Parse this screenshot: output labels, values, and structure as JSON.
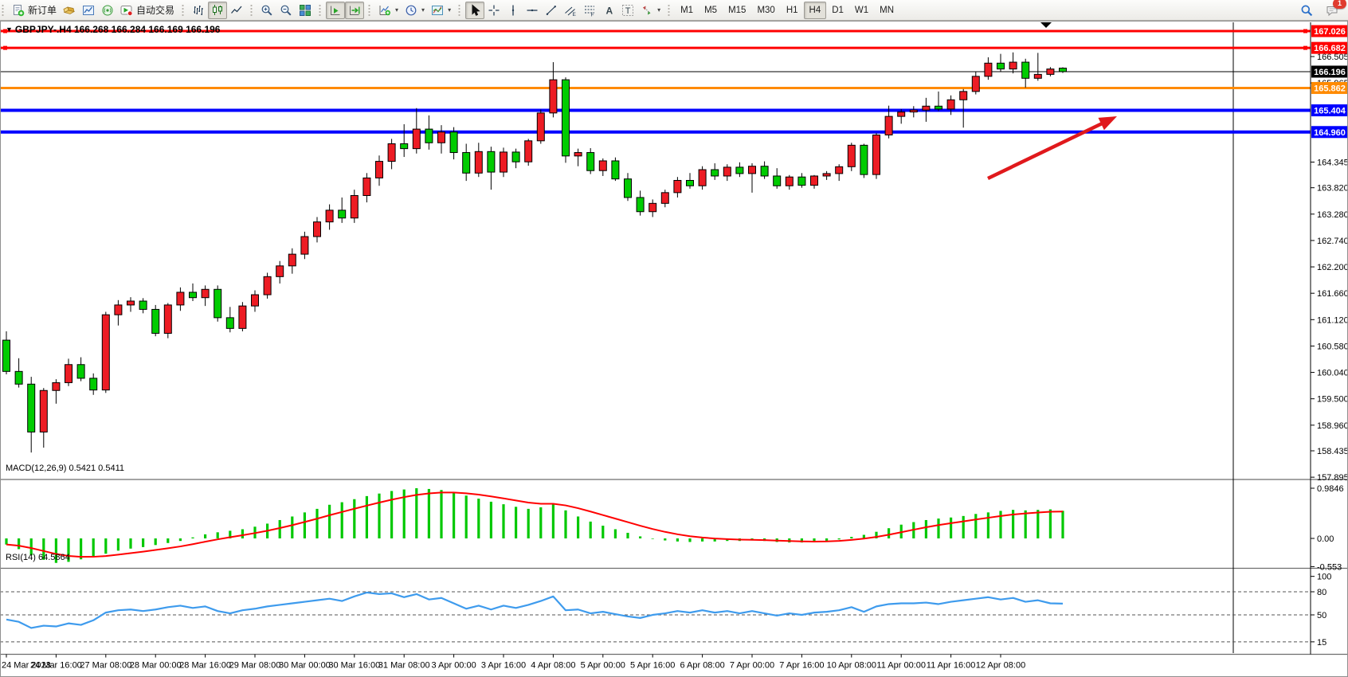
{
  "toolbar": {
    "groups": [
      {
        "items": [
          {
            "name": "new-order",
            "icon": "document-plus",
            "label": "新订单"
          },
          {
            "name": "mql5-gallery",
            "icon": "gold-cube"
          },
          {
            "name": "market-panel",
            "icon": "blue-chart"
          },
          {
            "name": "signals-broadcast",
            "icon": "green-broadcast"
          },
          {
            "name": "auto-trading",
            "icon": "autotrade-play",
            "label": "自动交易"
          }
        ]
      },
      {
        "items": [
          {
            "name": "bar-chart-mode",
            "icon": "bars"
          },
          {
            "name": "candlestick-mode",
            "icon": "candles",
            "pressed": true
          },
          {
            "name": "line-chart-mode",
            "icon": "polyline"
          }
        ]
      },
      {
        "items": [
          {
            "name": "zoom-in",
            "icon": "magnifier-plus"
          },
          {
            "name": "zoom-out",
            "icon": "magnifier-minus"
          },
          {
            "name": "tile-windows",
            "icon": "tiles"
          }
        ]
      },
      {
        "items": [
          {
            "name": "auto-scroll",
            "icon": "autoscroll",
            "pressed": true
          },
          {
            "name": "chart-shift",
            "icon": "chartshift",
            "pressed": true
          }
        ]
      },
      {
        "items": [
          {
            "name": "new-chart",
            "icon": "chart-plus",
            "dropdown": true
          },
          {
            "name": "periodicity",
            "icon": "clock",
            "dropdown": true
          },
          {
            "name": "indicators-list",
            "icon": "template-chart",
            "dropdown": true
          }
        ]
      },
      {
        "items": [
          {
            "name": "cursor",
            "icon": "pointer",
            "pressed": true
          },
          {
            "name": "crosshair",
            "icon": "crosshair"
          },
          {
            "name": "vertical-line-tool",
            "icon": "vline"
          },
          {
            "name": "horizontal-line-tool",
            "icon": "hline"
          },
          {
            "name": "trendline-tool",
            "icon": "tline"
          },
          {
            "name": "equidistant-channel-tool",
            "icon": "channel"
          },
          {
            "name": "fibonacci-tool",
            "icon": "fibo"
          },
          {
            "name": "text-tool",
            "icon": "letter-a"
          },
          {
            "name": "text-label-tool",
            "icon": "letter-t"
          },
          {
            "name": "arrows-tool",
            "icon": "arrows",
            "dropdown": true
          }
        ]
      }
    ],
    "timeframes": [
      "M1",
      "M5",
      "M15",
      "M30",
      "H1",
      "H4",
      "D1",
      "W1",
      "MN"
    ],
    "active_timeframe": "H4",
    "chat_badge": "1"
  },
  "chart_data": {
    "type": "candlestick",
    "symbol": "GBPJPY-",
    "timeframe": "H4",
    "title": "GBPJPY-.H4 166.268 166.284 166.169 166.196",
    "current_bar": {
      "open": 166.268,
      "high": 166.284,
      "low": 166.169,
      "close": 166.196
    },
    "bull_color": "#ed1c24",
    "bear_color": "#00cc00",
    "price_ticks": [
      "166.505",
      "165.965",
      "164.345",
      "163.820",
      "163.280",
      "162.740",
      "162.200",
      "161.660",
      "161.120",
      "160.580",
      "160.040",
      "159.500",
      "158.960",
      "158.435",
      "157.895"
    ],
    "hlines": [
      {
        "price": 167.026,
        "label": "167.026",
        "color": "#ff0000",
        "width": 3,
        "handles": true
      },
      {
        "price": 166.682,
        "label": "166.682",
        "color": "#ff0000",
        "width": 3,
        "handles": true
      },
      {
        "price": 165.862,
        "label": "165.862",
        "color": "#ff8a00",
        "width": 3,
        "handles": false
      },
      {
        "price": 165.404,
        "label": "165.404",
        "color": "#0000ff",
        "width": 4,
        "handles": false
      },
      {
        "price": 164.96,
        "label": "164.960",
        "color": "#0000ff",
        "width": 4,
        "handles": false
      }
    ],
    "bid_line": {
      "price": 166.196,
      "label": "166.196",
      "color": "#000000"
    },
    "arrow_annotation": {
      "color": "#e0191c"
    },
    "candles": [
      [
        160.7,
        160.88,
        160.0,
        160.06
      ],
      [
        160.06,
        160.33,
        159.73,
        159.8
      ],
      [
        159.8,
        159.95,
        158.4,
        158.82
      ],
      [
        158.82,
        159.72,
        158.5,
        159.67
      ],
      [
        159.67,
        159.9,
        159.4,
        159.83
      ],
      [
        159.83,
        160.32,
        159.76,
        160.2
      ],
      [
        160.2,
        160.35,
        159.86,
        159.92
      ],
      [
        159.92,
        160.02,
        159.58,
        159.68
      ],
      [
        159.68,
        161.28,
        159.62,
        161.22
      ],
      [
        161.22,
        161.52,
        161.0,
        161.42
      ],
      [
        161.42,
        161.58,
        161.28,
        161.5
      ],
      [
        161.5,
        161.56,
        161.25,
        161.33
      ],
      [
        161.33,
        161.42,
        160.78,
        160.84
      ],
      [
        160.84,
        161.46,
        160.74,
        161.42
      ],
      [
        161.42,
        161.78,
        161.3,
        161.68
      ],
      [
        161.68,
        161.86,
        161.5,
        161.57
      ],
      [
        161.57,
        161.82,
        161.4,
        161.74
      ],
      [
        161.74,
        161.82,
        161.08,
        161.16
      ],
      [
        161.16,
        161.38,
        160.86,
        160.94
      ],
      [
        160.94,
        161.48,
        160.88,
        161.4
      ],
      [
        161.4,
        161.72,
        161.28,
        161.63
      ],
      [
        161.63,
        162.08,
        161.55,
        162.0
      ],
      [
        162.0,
        162.32,
        161.86,
        162.22
      ],
      [
        162.22,
        162.58,
        162.06,
        162.46
      ],
      [
        162.46,
        162.92,
        162.36,
        162.82
      ],
      [
        162.82,
        163.22,
        162.7,
        163.12
      ],
      [
        163.12,
        163.48,
        162.96,
        163.36
      ],
      [
        163.36,
        163.62,
        163.1,
        163.2
      ],
      [
        163.2,
        163.78,
        163.1,
        163.66
      ],
      [
        163.66,
        164.12,
        163.52,
        164.02
      ],
      [
        164.02,
        164.48,
        163.86,
        164.36
      ],
      [
        164.36,
        164.82,
        164.2,
        164.72
      ],
      [
        164.72,
        165.12,
        164.45,
        164.62
      ],
      [
        164.62,
        165.45,
        164.52,
        165.02
      ],
      [
        165.02,
        165.3,
        164.6,
        164.74
      ],
      [
        164.74,
        165.1,
        164.52,
        164.96
      ],
      [
        164.96,
        165.06,
        164.4,
        164.54
      ],
      [
        164.54,
        164.72,
        163.96,
        164.12
      ],
      [
        164.12,
        164.74,
        164.04,
        164.56
      ],
      [
        164.56,
        164.66,
        163.78,
        164.14
      ],
      [
        164.14,
        164.64,
        164.04,
        164.55
      ],
      [
        164.55,
        164.62,
        164.22,
        164.35
      ],
      [
        164.35,
        164.82,
        164.27,
        164.78
      ],
      [
        164.78,
        165.42,
        164.72,
        165.35
      ],
      [
        165.35,
        166.39,
        165.26,
        166.03
      ],
      [
        166.03,
        166.08,
        164.33,
        164.47
      ],
      [
        164.47,
        164.62,
        164.26,
        164.54
      ],
      [
        164.54,
        164.63,
        164.1,
        164.17
      ],
      [
        164.17,
        164.42,
        164.06,
        164.37
      ],
      [
        164.37,
        164.44,
        163.96,
        164.0
      ],
      [
        164.0,
        164.12,
        163.55,
        163.62
      ],
      [
        163.62,
        163.76,
        163.25,
        163.33
      ],
      [
        163.33,
        163.58,
        163.22,
        163.5
      ],
      [
        163.5,
        163.78,
        163.42,
        163.72
      ],
      [
        163.72,
        164.04,
        163.62,
        163.97
      ],
      [
        163.97,
        164.12,
        163.8,
        163.86
      ],
      [
        163.86,
        164.26,
        163.78,
        164.19
      ],
      [
        164.19,
        164.32,
        163.98,
        164.06
      ],
      [
        164.06,
        164.3,
        163.96,
        164.24
      ],
      [
        164.24,
        164.34,
        164.04,
        164.11
      ],
      [
        164.11,
        164.32,
        163.72,
        164.26
      ],
      [
        164.26,
        164.36,
        164.0,
        164.06
      ],
      [
        164.06,
        164.22,
        163.8,
        163.86
      ],
      [
        163.86,
        164.08,
        163.78,
        164.04
      ],
      [
        164.04,
        164.12,
        163.82,
        163.87
      ],
      [
        163.87,
        164.08,
        163.8,
        164.06
      ],
      [
        164.06,
        164.16,
        163.98,
        164.11
      ],
      [
        164.11,
        164.3,
        163.96,
        164.25
      ],
      [
        164.25,
        164.74,
        164.16,
        164.69
      ],
      [
        164.69,
        164.72,
        164.02,
        164.09
      ],
      [
        164.09,
        164.94,
        164.0,
        164.9
      ],
      [
        164.9,
        165.5,
        164.83,
        165.28
      ],
      [
        165.28,
        165.43,
        165.13,
        165.37
      ],
      [
        165.37,
        165.49,
        165.26,
        165.41
      ],
      [
        165.41,
        165.66,
        165.17,
        165.49
      ],
      [
        165.49,
        165.79,
        165.39,
        165.43
      ],
      [
        165.43,
        165.71,
        165.31,
        165.62
      ],
      [
        165.62,
        165.84,
        165.05,
        165.79
      ],
      [
        165.79,
        166.19,
        165.73,
        166.1
      ],
      [
        166.1,
        166.49,
        166.03,
        166.37
      ],
      [
        166.37,
        166.56,
        166.19,
        166.25
      ],
      [
        166.25,
        166.59,
        166.16,
        166.39
      ],
      [
        166.39,
        166.46,
        165.87,
        166.06
      ],
      [
        166.06,
        166.58,
        166.01,
        166.14
      ],
      [
        166.14,
        166.29,
        166.1,
        166.25
      ],
      [
        166.268,
        166.284,
        166.169,
        166.196
      ]
    ],
    "date_labels": [
      "24 Mar 2023",
      "24 Mar 16:00",
      "27 Mar 08:00",
      "28 Mar 00:00",
      "28 Mar 16:00",
      "29 Mar 08:00",
      "30 Mar 00:00",
      "30 Mar 16:00",
      "31 Mar 08:00",
      "3 Apr 00:00",
      "3 Apr 16:00",
      "4 Apr 08:00",
      "5 Apr 00:00",
      "5 Apr 16:00",
      "6 Apr 08:00",
      "7 Apr 00:00",
      "7 Apr 16:00",
      "10 Apr 08:00",
      "11 Apr 00:00",
      "11 Apr 16:00",
      "12 Apr 08:00"
    ],
    "macd": {
      "label": "MACD(12,26,9) 0.5421 0.5411",
      "main_last": 0.5421,
      "signal_last": 0.5411,
      "axis_labels": [
        "0.9846",
        "0.00",
        "-0.553"
      ],
      "histogram_color": "#00c800",
      "signal_color": "#ff0000",
      "values": [
        -0.12,
        -0.21,
        -0.33,
        -0.42,
        -0.48,
        -0.46,
        -0.41,
        -0.36,
        -0.3,
        -0.24,
        -0.2,
        -0.17,
        -0.13,
        -0.09,
        -0.05,
        0.02,
        0.08,
        0.12,
        0.15,
        0.18,
        0.23,
        0.29,
        0.36,
        0.43,
        0.51,
        0.58,
        0.66,
        0.71,
        0.77,
        0.83,
        0.88,
        0.93,
        0.96,
        0.985,
        0.97,
        0.95,
        0.9,
        0.84,
        0.78,
        0.72,
        0.67,
        0.62,
        0.58,
        0.61,
        0.68,
        0.55,
        0.43,
        0.33,
        0.25,
        0.18,
        0.11,
        0.04,
        -0.01,
        -0.04,
        -0.06,
        -0.07,
        -0.06,
        -0.06,
        -0.05,
        -0.05,
        -0.04,
        -0.05,
        -0.07,
        -0.08,
        -0.08,
        -0.07,
        -0.05,
        -0.02,
        0.03,
        0.07,
        0.13,
        0.2,
        0.27,
        0.32,
        0.36,
        0.39,
        0.41,
        0.44,
        0.48,
        0.51,
        0.54,
        0.56,
        0.55,
        0.56,
        0.57,
        0.5421
      ]
    },
    "rsi": {
      "label": "RSI(14) 64.5864",
      "last": 64.5864,
      "levels": [
        80,
        50,
        15
      ],
      "axis_labels": [
        "100",
        "80",
        "50",
        "15"
      ],
      "line_color": "#3e9bed",
      "values": [
        44,
        41,
        33,
        36,
        35,
        39,
        37,
        43,
        53,
        56,
        57,
        55,
        57,
        60,
        62,
        59,
        61,
        55,
        52,
        56,
        58,
        61,
        63,
        65,
        67,
        69,
        71,
        68,
        74,
        79,
        77,
        78,
        73,
        77,
        70,
        72,
        65,
        58,
        62,
        57,
        62,
        59,
        63,
        68,
        74,
        56,
        57,
        52,
        54,
        51,
        48,
        46,
        50,
        52,
        55,
        53,
        56,
        53,
        55,
        52,
        55,
        52,
        49,
        52,
        50,
        53,
        54,
        56,
        60,
        54,
        61,
        64,
        65,
        65,
        66,
        64,
        67,
        69,
        71,
        73,
        70,
        72,
        67,
        69,
        65,
        64.59
      ]
    }
  }
}
